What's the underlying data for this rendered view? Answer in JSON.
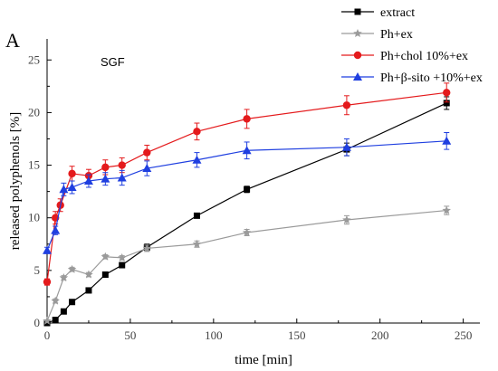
{
  "chart_data": {
    "type": "line",
    "panel_label": "A",
    "annotation": "SGF",
    "xlabel": "time [min]",
    "ylabel": "released polyphenols [%]",
    "xlim": [
      0,
      260
    ],
    "ylim": [
      0,
      27
    ],
    "x_ticks": [
      0,
      50,
      100,
      150,
      200,
      250
    ],
    "y_ticks": [
      0,
      5,
      10,
      15,
      20,
      25
    ],
    "legend_position": "top-right",
    "series": [
      {
        "name": "extract",
        "color": "#000000",
        "marker": "square",
        "points": [
          [
            0,
            0
          ],
          [
            5,
            0.3
          ],
          [
            10,
            1.1
          ],
          [
            15,
            2.0
          ],
          [
            25,
            3.1
          ],
          [
            35,
            4.6
          ],
          [
            45,
            5.5
          ],
          [
            60,
            7.2
          ],
          [
            90,
            10.2
          ],
          [
            120,
            12.7
          ],
          [
            180,
            16.5
          ],
          [
            240,
            20.9
          ]
        ],
        "errors": [
          0,
          0.1,
          0.1,
          0.1,
          0.1,
          0.2,
          0.2,
          0.3,
          0.2,
          0.3,
          0.6,
          0.6
        ]
      },
      {
        "name": "Ph+ex",
        "color": "#9a9a9a",
        "marker": "star",
        "points": [
          [
            0,
            0.2
          ],
          [
            5,
            2.1
          ],
          [
            10,
            4.3
          ],
          [
            15,
            5.1
          ],
          [
            25,
            4.6
          ],
          [
            35,
            6.3
          ],
          [
            45,
            6.2
          ],
          [
            60,
            7.1
          ],
          [
            90,
            7.5
          ],
          [
            120,
            8.6
          ],
          [
            180,
            9.8
          ],
          [
            240,
            10.7
          ]
        ],
        "errors": [
          0,
          0.2,
          0.2,
          0.2,
          0.2,
          0.2,
          0.2,
          0.3,
          0.3,
          0.3,
          0.4,
          0.4
        ]
      },
      {
        "name": "Ph+chol 10%+ex",
        "color": "#e41a1c",
        "marker": "circle",
        "points": [
          [
            0,
            3.9
          ],
          [
            5,
            10.0
          ],
          [
            8,
            11.2
          ],
          [
            15,
            14.2
          ],
          [
            25,
            14.0
          ],
          [
            35,
            14.8
          ],
          [
            45,
            15.0
          ],
          [
            60,
            16.2
          ],
          [
            90,
            18.2
          ],
          [
            120,
            19.4
          ],
          [
            180,
            20.7
          ],
          [
            240,
            21.9
          ]
        ],
        "errors": [
          0.3,
          0.6,
          0.6,
          0.7,
          0.6,
          0.7,
          0.7,
          0.7,
          0.8,
          0.9,
          0.9,
          0.9
        ]
      },
      {
        "name": "Ph+β-sito +10%+ex",
        "color": "#1f3fe0",
        "marker": "triangle",
        "points": [
          [
            0,
            6.9
          ],
          [
            5,
            8.8
          ],
          [
            10,
            12.7
          ],
          [
            15,
            12.9
          ],
          [
            25,
            13.5
          ],
          [
            35,
            13.7
          ],
          [
            45,
            13.8
          ],
          [
            60,
            14.7
          ],
          [
            90,
            15.5
          ],
          [
            120,
            16.4
          ],
          [
            180,
            16.7
          ],
          [
            240,
            17.3
          ]
        ],
        "errors": [
          0.3,
          0.4,
          0.6,
          0.6,
          0.6,
          0.6,
          0.7,
          0.7,
          0.7,
          0.8,
          0.8,
          0.8
        ]
      }
    ]
  }
}
